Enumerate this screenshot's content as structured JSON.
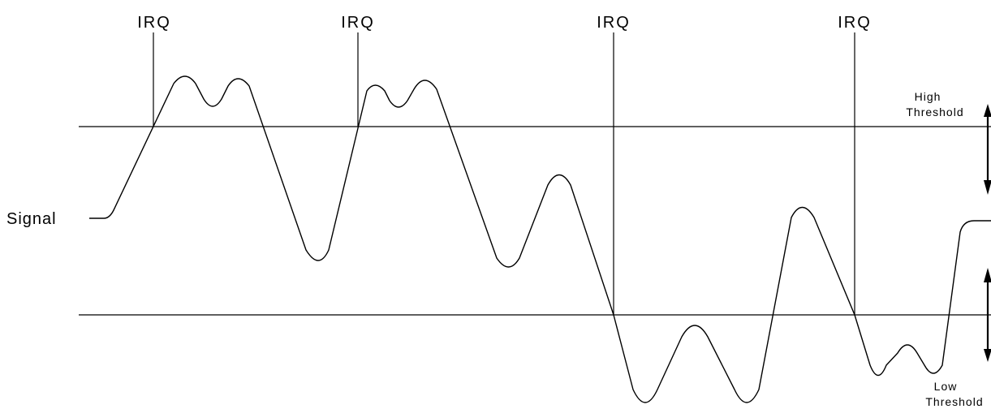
{
  "irq_labels": [
    "IRQ",
    "IRQ",
    "IRQ",
    "IRQ"
  ],
  "signal_label": "Signal",
  "high_threshold": {
    "line1": "High",
    "line2": "Threshold"
  },
  "low_threshold": {
    "line1": "Low",
    "line2": "Threshold"
  }
}
